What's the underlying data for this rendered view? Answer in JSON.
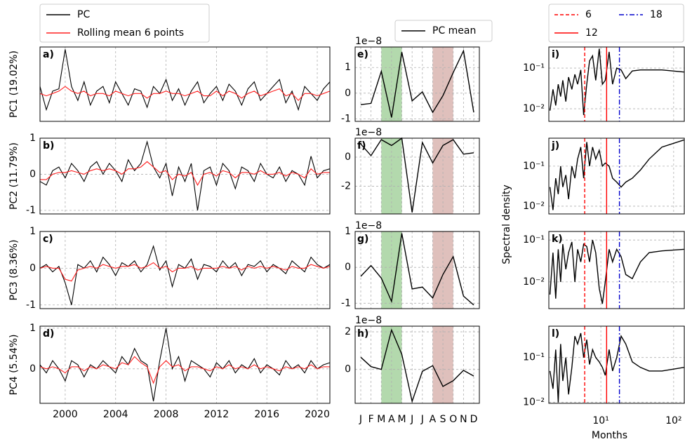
{
  "chart_data": [
    {
      "type": "line",
      "x": [
        1998.0,
        1998.5,
        1999.0,
        1999.5,
        2000.0,
        2000.5,
        2001.0,
        2001.5,
        2002.0,
        2002.5,
        2003.0,
        2003.5,
        2004.0,
        2004.5,
        2005.0,
        2005.5,
        2006.0,
        2006.5,
        2007.0,
        2007.5,
        2008.0,
        2008.5,
        2009.0,
        2009.5,
        2010.0,
        2010.5,
        2011.0,
        2011.5,
        2012.0,
        2012.5,
        2013.0,
        2013.5,
        2014.0,
        2014.5,
        2015.0,
        2015.5,
        2016.0,
        2016.5,
        2017.0,
        2017.5,
        2018.0,
        2018.5,
        2019.0,
        2019.5,
        2020.0,
        2020.5,
        2021.0
      ],
      "xlim": [
        1998,
        2021
      ],
      "xticks": [
        2000,
        2004,
        2008,
        2012,
        2016,
        2020
      ],
      "grid": true,
      "series": [
        {
          "name": "PC",
          "color": "#000000"
        },
        {
          "name": "Rolling mean 6 points",
          "color": "#ff2020"
        }
      ],
      "panels": [
        {
          "label": "a)",
          "ylabel": "PC1 (19.02%)",
          "ylim": [
            -0.55,
            1.05
          ],
          "yticks": [],
          "series": [
            {
              "values": [
                0.2,
                -0.3,
                0.1,
                0.15,
                1.0,
                0.2,
                -0.1,
                0.3,
                -0.2,
                0.1,
                0.2,
                -0.15,
                0.3,
                0.05,
                -0.2,
                0.15,
                0.1,
                -0.25,
                0.2,
                0.05,
                0.35,
                -0.1,
                0.15,
                -0.2,
                0.1,
                0.3,
                -0.15,
                0.05,
                0.2,
                -0.1,
                0.25,
                0.1,
                -0.2,
                0.15,
                0.3,
                -0.1,
                0.05,
                0.2,
                0.35,
                -0.15,
                0.1,
                -0.3,
                0.2,
                0.05,
                -0.1,
                0.15,
                0.3
              ]
            },
            {
              "values": [
                0.05,
                0.0,
                0.05,
                0.1,
                0.2,
                0.1,
                0.05,
                0.1,
                0.0,
                0.05,
                0.05,
                0.0,
                0.1,
                0.05,
                0.0,
                0.05,
                0.05,
                -0.05,
                0.05,
                0.05,
                0.1,
                0.05,
                0.05,
                0.0,
                0.05,
                0.1,
                0.0,
                0.0,
                0.1,
                0.0,
                0.1,
                0.05,
                -0.05,
                0.05,
                0.1,
                0.0,
                0.05,
                0.1,
                0.15,
                0.0,
                0.05,
                -0.1,
                0.05,
                0.05,
                0.0,
                0.05,
                0.1
              ]
            }
          ]
        },
        {
          "label": "b)",
          "ylabel": "PC2 (11.79%)",
          "ylim": [
            -1.1,
            1.0
          ],
          "yticks": [
            -1,
            0,
            1
          ],
          "series": [
            {
              "values": [
                -0.2,
                -0.3,
                0.1,
                0.2,
                -0.1,
                0.3,
                0.1,
                -0.2,
                0.2,
                0.35,
                0.0,
                0.3,
                0.1,
                -0.2,
                0.4,
                0.1,
                0.3,
                0.9,
                0.2,
                -0.1,
                0.3,
                -0.6,
                0.2,
                -0.2,
                0.3,
                -1.0,
                0.1,
                0.2,
                -0.3,
                0.3,
                0.1,
                -0.4,
                0.2,
                0.1,
                -0.2,
                0.3,
                0.0,
                -0.1,
                0.2,
                -0.2,
                0.1,
                0.0,
                -0.3,
                0.5,
                -0.1,
                0.1,
                0.15
              ]
            },
            {
              "values": [
                -0.15,
                -0.15,
                0.0,
                0.05,
                0.05,
                0.1,
                0.05,
                0.0,
                0.1,
                0.15,
                0.1,
                0.15,
                0.1,
                0.0,
                0.15,
                0.15,
                0.2,
                0.35,
                0.2,
                0.05,
                0.1,
                -0.15,
                0.0,
                -0.05,
                0.05,
                -0.3,
                0.0,
                0.05,
                -0.05,
                0.1,
                0.05,
                -0.1,
                0.05,
                0.05,
                0.0,
                0.1,
                0.0,
                0.0,
                0.05,
                -0.05,
                0.05,
                0.0,
                -0.1,
                0.15,
                0.0,
                0.05,
                0.05
              ]
            }
          ]
        },
        {
          "label": "c)",
          "ylabel": "PC3 (8.36%)",
          "ylim": [
            -1.1,
            1.0
          ],
          "yticks": [
            -1,
            0,
            1
          ],
          "series": [
            {
              "values": [
                0.0,
                0.1,
                -0.1,
                0.05,
                -0.4,
                -1.0,
                0.1,
                0.0,
                0.2,
                -0.1,
                0.3,
                0.1,
                -0.2,
                0.15,
                0.05,
                0.2,
                -0.1,
                0.1,
                0.6,
                -0.05,
                0.2,
                -0.5,
                0.1,
                0.0,
                0.25,
                -0.3,
                0.1,
                0.05,
                -0.1,
                0.2,
                0.0,
                0.15,
                -0.2,
                0.1,
                0.05,
                0.2,
                -0.1,
                0.1,
                0.0,
                -0.15,
                0.2,
                0.05,
                -0.1,
                0.3,
                0.1,
                0.0,
                0.1
              ]
            },
            {
              "values": [
                0.0,
                0.05,
                0.0,
                0.0,
                -0.3,
                -0.35,
                -0.05,
                0.0,
                0.05,
                0.0,
                0.1,
                0.05,
                0.0,
                0.05,
                0.05,
                0.1,
                0.0,
                0.05,
                0.15,
                0.0,
                0.05,
                -0.1,
                0.0,
                0.0,
                0.05,
                -0.05,
                0.0,
                0.0,
                0.0,
                0.05,
                0.0,
                0.05,
                -0.05,
                0.05,
                0.0,
                0.05,
                0.0,
                0.05,
                0.0,
                -0.05,
                0.05,
                0.0,
                0.0,
                0.1,
                0.05,
                0.0,
                0.05
              ]
            }
          ]
        },
        {
          "label": "d)",
          "ylabel": "PC4 (5.54%)",
          "ylim": [
            -0.85,
            1.05
          ],
          "yticks": [
            0,
            1
          ],
          "series": [
            {
              "values": [
                0.1,
                -0.1,
                0.2,
                0.0,
                -0.3,
                0.2,
                0.1,
                -0.2,
                0.1,
                0.0,
                0.2,
                0.05,
                -0.1,
                0.3,
                0.1,
                0.5,
                0.2,
                0.1,
                -0.8,
                0.2,
                1.0,
                0.0,
                0.3,
                -0.3,
                0.2,
                0.1,
                0.0,
                -0.2,
                0.15,
                0.0,
                0.2,
                -0.1,
                0.1,
                0.0,
                0.25,
                -0.1,
                0.1,
                0.0,
                -0.15,
                0.2,
                0.0,
                0.1,
                -0.1,
                0.2,
                0.0,
                0.1,
                0.15
              ]
            },
            {
              "values": [
                0.05,
                0.0,
                0.05,
                0.0,
                -0.1,
                0.05,
                0.05,
                -0.05,
                0.05,
                0.0,
                0.1,
                0.05,
                0.0,
                0.15,
                0.1,
                0.3,
                0.15,
                0.05,
                -0.35,
                0.05,
                0.2,
                0.05,
                0.1,
                -0.05,
                0.05,
                0.05,
                0.0,
                -0.05,
                0.05,
                0.0,
                0.1,
                0.0,
                0.05,
                0.0,
                0.1,
                0.0,
                0.05,
                0.0,
                -0.05,
                0.05,
                0.0,
                0.05,
                0.0,
                0.1,
                0.0,
                0.05,
                0.05
              ]
            }
          ]
        }
      ]
    },
    {
      "type": "monthly",
      "categories": [
        "J",
        "F",
        "M",
        "A",
        "M",
        "J",
        "J",
        "A",
        "S",
        "O",
        "N",
        "D"
      ],
      "grid": true,
      "series": [
        {
          "name": "PC mean",
          "color": "#000000"
        }
      ],
      "shading": [
        {
          "from": 2,
          "to": 4,
          "color": "#b3d9ad"
        },
        {
          "from": 7,
          "to": 9,
          "color": "#dfc0bc"
        }
      ],
      "panels": [
        {
          "label": "e)",
          "offset_label": "1e−8",
          "ylim": [
            -1.1,
            1.8
          ],
          "yticks": [
            -1,
            0,
            1
          ],
          "values": [
            -0.45,
            -0.4,
            0.85,
            -0.95,
            1.6,
            -0.3,
            0.05,
            -0.75,
            -0.1,
            0.8,
            1.65,
            -0.75
          ]
        },
        {
          "label": "f)",
          "offset_label": "1e−8",
          "ylim": [
            -3.9,
            1.3
          ],
          "yticks": [
            -2,
            0
          ],
          "values": [
            0.9,
            0.1,
            1.2,
            0.8,
            1.3,
            -3.8,
            1.0,
            -0.4,
            0.8,
            1.2,
            0.2,
            0.3
          ]
        },
        {
          "label": "g)",
          "offset_label": "1e−8",
          "ylim": [
            -1.15,
            1.0
          ],
          "yticks": [
            -1,
            0,
            1
          ],
          "values": [
            -0.25,
            0.05,
            -0.3,
            -0.95,
            0.95,
            -0.6,
            -0.55,
            -0.85,
            -0.2,
            0.3,
            -0.8,
            -1.05
          ]
        },
        {
          "label": "h)",
          "offset_label": "1e−8",
          "ylim": [
            -1.8,
            2.3
          ],
          "yticks": [
            0,
            2
          ],
          "values": [
            0.65,
            0.15,
            0.0,
            2.1,
            0.8,
            -1.7,
            -0.1,
            0.2,
            -0.9,
            -0.6,
            -0.05,
            -0.35
          ]
        }
      ]
    },
    {
      "type": "spectrum",
      "log_x": true,
      "log_y": true,
      "grid": true,
      "x": [
        2,
        2.2,
        2.4,
        2.6,
        2.8,
        3,
        3.3,
        3.6,
        4,
        4.4,
        4.8,
        5.3,
        5.8,
        6.4,
        7,
        7.7,
        8.5,
        9.5,
        10.5,
        11.5,
        13,
        14.5,
        16.5,
        19,
        22,
        27,
        35,
        46,
        69,
        138
      ],
      "xlim": [
        1.93,
        140
      ],
      "xticks": [
        {
          "value": 10,
          "label": "10¹"
        },
        {
          "value": 100,
          "label": "10²"
        }
      ],
      "xlabel": "Months",
      "ylabel": "Spectral density",
      "vlines": [
        {
          "name": "6",
          "value": 6,
          "color": "#ff0000",
          "dash": "5 3"
        },
        {
          "name": "12",
          "value": 12,
          "color": "#ff0000",
          "dash": "none"
        },
        {
          "name": "18",
          "value": 18,
          "color": "#0000cc",
          "dash": "7 3 2 3"
        }
      ],
      "panels": [
        {
          "label": "i)",
          "ylim": [
            0.0049,
            0.33
          ],
          "yticks": [
            {
              "value": 0.1,
              "label": "10⁻¹"
            },
            {
              "value": 0.01,
              "label": "10⁻²"
            }
          ],
          "values": [
            0.009,
            0.03,
            0.012,
            0.04,
            0.02,
            0.05,
            0.015,
            0.06,
            0.03,
            0.07,
            0.04,
            0.09,
            0.007,
            0.04,
            0.15,
            0.2,
            0.05,
            0.3,
            0.04,
            0.05,
            0.25,
            0.04,
            0.1,
            0.09,
            0.055,
            0.085,
            0.09,
            0.09,
            0.09,
            0.08
          ]
        },
        {
          "label": "j)",
          "ylim": [
            0.0064,
            0.5
          ],
          "yticks": [
            {
              "value": 0.1,
              "label": "10⁻¹"
            },
            {
              "value": 0.01,
              "label": "10⁻²"
            }
          ],
          "values": [
            0.03,
            0.008,
            0.05,
            0.02,
            0.1,
            0.03,
            0.06,
            0.015,
            0.1,
            0.05,
            0.15,
            0.3,
            0.05,
            0.4,
            0.1,
            0.3,
            0.15,
            0.25,
            0.1,
            0.12,
            0.1,
            0.05,
            0.04,
            0.03,
            0.04,
            0.05,
            0.08,
            0.15,
            0.3,
            0.45
          ]
        },
        {
          "label": "k)",
          "ylim": [
            0.0023,
            0.16
          ],
          "yticks": [
            {
              "value": 0.1,
              "label": "10⁻¹"
            },
            {
              "value": 0.01,
              "label": "10⁻²"
            }
          ],
          "values": [
            0.005,
            0.05,
            0.004,
            0.06,
            0.01,
            0.08,
            0.02,
            0.05,
            0.09,
            0.01,
            0.06,
            0.03,
            0.08,
            0.07,
            0.03,
            0.1,
            0.05,
            0.007,
            0.003,
            0.01,
            0.06,
            0.03,
            0.06,
            0.04,
            0.015,
            0.012,
            0.03,
            0.05,
            0.055,
            0.06
          ]
        },
        {
          "label": "l)",
          "ylim": [
            0.0095,
            0.5
          ],
          "yticks": [
            {
              "value": 0.1,
              "label": "10⁻¹"
            },
            {
              "value": 0.01,
              "label": "10⁻²"
            }
          ],
          "values": [
            0.05,
            0.02,
            0.15,
            0.01,
            0.2,
            0.03,
            0.1,
            0.015,
            0.06,
            0.3,
            0.2,
            0.35,
            0.1,
            0.25,
            0.07,
            0.15,
            0.1,
            0.08,
            0.06,
            0.04,
            0.15,
            0.05,
            0.1,
            0.3,
            0.2,
            0.08,
            0.06,
            0.05,
            0.05,
            0.06
          ]
        }
      ]
    }
  ]
}
